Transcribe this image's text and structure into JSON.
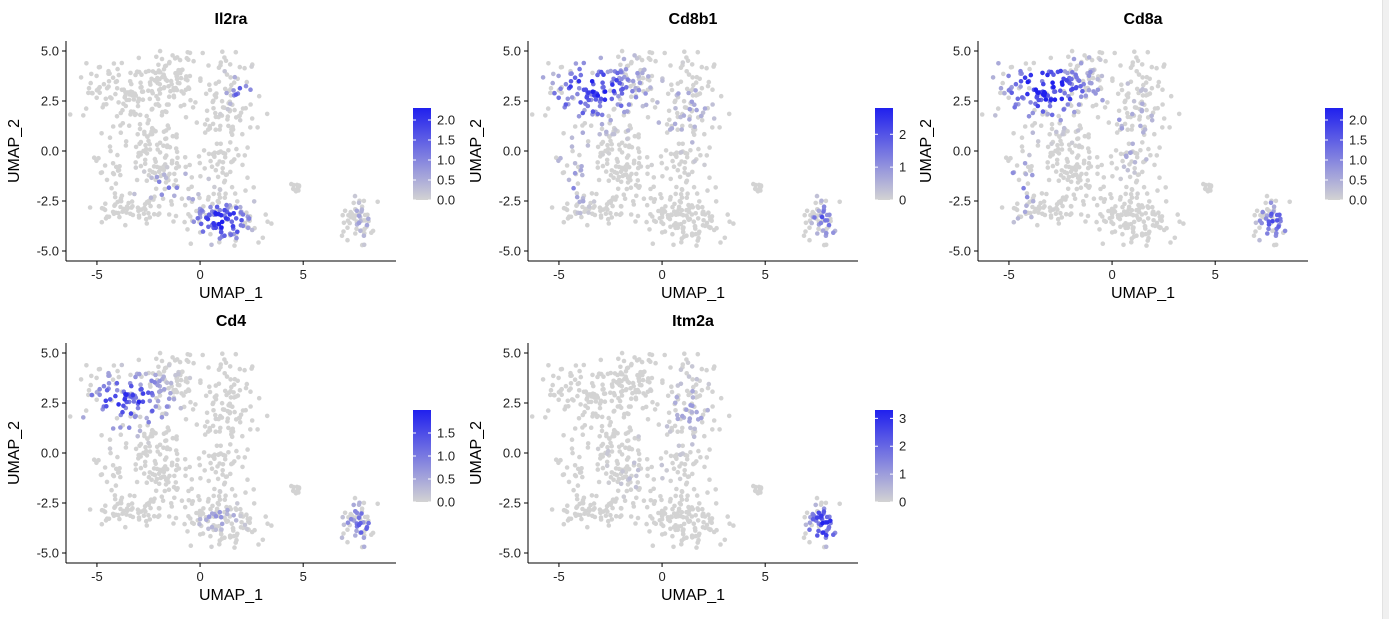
{
  "chart_data": [
    {
      "type": "scatter",
      "title": "Il2ra",
      "xlabel": "UMAP_1",
      "ylabel": "UMAP_2",
      "xlim": [
        -6.5,
        9.5
      ],
      "ylim": [
        -5.5,
        5.5
      ],
      "x_ticks": [
        -5,
        0,
        5
      ],
      "y_ticks": [
        -5.0,
        -2.5,
        0.0,
        2.5,
        5.0
      ],
      "y_tick_labels": [
        "-5.0",
        "-2.5",
        "0.0",
        "2.5",
        "5.0"
      ],
      "grid": false,
      "colorbar": {
        "range": [
          0,
          2.3
        ],
        "ticks": [
          0.0,
          0.5,
          1.0,
          1.5,
          2.0
        ],
        "tick_labels": [
          "0.0",
          "0.5",
          "1.0",
          "1.5",
          "2.0"
        ],
        "low": "#d3d3d3",
        "high": "#2020ee"
      },
      "high_regions": [
        {
          "cx": 1.1,
          "cy": -3.5,
          "sx": 1.0,
          "sy": 0.7,
          "w": 2.1
        },
        {
          "cx": 1.9,
          "cy": 3.0,
          "sx": 0.5,
          "sy": 0.6,
          "w": 1.3
        },
        {
          "cx": -1.5,
          "cy": -1.8,
          "sx": 1.0,
          "sy": 0.5,
          "w": 1.0
        },
        {
          "cx": 7.8,
          "cy": -3.5,
          "sx": 0.6,
          "sy": 0.8,
          "w": 0.6
        }
      ],
      "seed": 11
    },
    {
      "type": "scatter",
      "title": "Cd8b1",
      "xlabel": "UMAP_1",
      "ylabel": "UMAP_2",
      "xlim": [
        -6.5,
        9.5
      ],
      "ylim": [
        -5.5,
        5.5
      ],
      "x_ticks": [
        -5,
        0,
        5
      ],
      "y_ticks": [
        -5.0,
        -2.5,
        0.0,
        2.5,
        5.0
      ],
      "y_tick_labels": [
        "-5.0",
        "-2.5",
        "0.0",
        "2.5",
        "5.0"
      ],
      "grid": false,
      "colorbar": {
        "range": [
          0,
          2.8
        ],
        "ticks": [
          0,
          1,
          2
        ],
        "tick_labels": [
          "0",
          "1",
          "2"
        ],
        "low": "#d3d3d3",
        "high": "#2020ee"
      },
      "high_regions": [
        {
          "cx": -3.3,
          "cy": 3.0,
          "sx": 1.6,
          "sy": 1.1,
          "w": 2.4
        },
        {
          "cx": 7.9,
          "cy": -3.4,
          "sx": 0.6,
          "sy": 0.8,
          "w": 1.6
        },
        {
          "cx": 1.2,
          "cy": 1.8,
          "sx": 1.0,
          "sy": 1.3,
          "w": 0.8
        },
        {
          "cx": -4.3,
          "cy": -1.5,
          "sx": 0.6,
          "sy": 1.3,
          "w": 1.0
        }
      ],
      "seed": 23
    },
    {
      "type": "scatter",
      "title": "Cd8a",
      "xlabel": "UMAP_1",
      "ylabel": "UMAP_2",
      "xlim": [
        -6.5,
        9.5
      ],
      "ylim": [
        -5.5,
        5.5
      ],
      "x_ticks": [
        -5,
        0,
        5
      ],
      "y_ticks": [
        -5.0,
        -2.5,
        0.0,
        2.5,
        5.0
      ],
      "y_tick_labels": [
        "-5.0",
        "-2.5",
        "0.0",
        "2.5",
        "5.0"
      ],
      "grid": false,
      "colorbar": {
        "range": [
          0,
          2.3
        ],
        "ticks": [
          0.0,
          0.5,
          1.0,
          1.5,
          2.0
        ],
        "tick_labels": [
          "0.0",
          "0.5",
          "1.0",
          "1.5",
          "2.0"
        ],
        "low": "#d3d3d3",
        "high": "#2020ee"
      },
      "high_regions": [
        {
          "cx": -3.2,
          "cy": 3.1,
          "sx": 1.6,
          "sy": 1.1,
          "w": 2.2
        },
        {
          "cx": 7.9,
          "cy": -3.5,
          "sx": 0.6,
          "sy": 0.8,
          "w": 1.4
        },
        {
          "cx": 1.0,
          "cy": 1.0,
          "sx": 0.9,
          "sy": 1.2,
          "w": 0.8
        },
        {
          "cx": -4.4,
          "cy": -1.6,
          "sx": 0.6,
          "sy": 1.3,
          "w": 0.9
        }
      ],
      "seed": 37
    },
    {
      "type": "scatter",
      "title": "Cd4",
      "xlabel": "UMAP_1",
      "ylabel": "UMAP_2",
      "xlim": [
        -6.5,
        9.5
      ],
      "ylim": [
        -5.5,
        5.5
      ],
      "x_ticks": [
        -5,
        0,
        5
      ],
      "y_ticks": [
        -5.0,
        -2.5,
        0.0,
        2.5,
        5.0
      ],
      "y_tick_labels": [
        "-5.0",
        "-2.5",
        "0.0",
        "2.5",
        "5.0"
      ],
      "grid": false,
      "colorbar": {
        "range": [
          0,
          2.0
        ],
        "ticks": [
          0.0,
          0.5,
          1.0,
          1.5
        ],
        "tick_labels": [
          "0.0",
          "0.5",
          "1.0",
          "1.5"
        ],
        "low": "#d3d3d3",
        "high": "#2020ee"
      },
      "high_regions": [
        {
          "cx": -3.6,
          "cy": 2.6,
          "sx": 1.5,
          "sy": 1.0,
          "w": 1.6
        },
        {
          "cx": 7.8,
          "cy": -3.6,
          "sx": 0.6,
          "sy": 0.8,
          "w": 1.1
        },
        {
          "cx": 6.2,
          "cy": -2.6,
          "sx": 0.3,
          "sy": 0.2,
          "w": 1.2
        },
        {
          "cx": 0.8,
          "cy": -3.3,
          "sx": 0.8,
          "sy": 0.6,
          "w": 0.6
        }
      ],
      "seed": 41
    },
    {
      "type": "scatter",
      "title": "Itm2a",
      "xlabel": "UMAP_1",
      "ylabel": "UMAP_2",
      "xlim": [
        -6.5,
        9.5
      ],
      "ylim": [
        -5.5,
        5.5
      ],
      "x_ticks": [
        -5,
        0,
        5
      ],
      "y_ticks": [
        -5.0,
        -2.5,
        0.0,
        2.5,
        5.0
      ],
      "y_tick_labels": [
        "-5.0",
        "-2.5",
        "0.0",
        "2.5",
        "5.0"
      ],
      "grid": false,
      "colorbar": {
        "range": [
          0,
          3.3
        ],
        "ticks": [
          0,
          1,
          2,
          3
        ],
        "tick_labels": [
          "0",
          "1",
          "2",
          "3"
        ],
        "low": "#d3d3d3",
        "high": "#2020ee"
      },
      "high_regions": [
        {
          "cx": 7.8,
          "cy": -3.6,
          "sx": 0.6,
          "sy": 0.8,
          "w": 2.8
        },
        {
          "cx": 1.4,
          "cy": 2.2,
          "sx": 0.8,
          "sy": 1.2,
          "w": 0.9
        },
        {
          "cx": -1.2,
          "cy": -0.5,
          "sx": 1.0,
          "sy": 1.0,
          "w": 0.6
        }
      ],
      "seed": 53
    }
  ],
  "cell_clusters": [
    {
      "cx": -3.8,
      "cy": 2.9,
      "sx": 1.0,
      "sy": 0.8,
      "n": 95
    },
    {
      "cx": -1.6,
      "cy": 3.4,
      "sx": 1.0,
      "sy": 0.9,
      "n": 110
    },
    {
      "cx": 1.4,
      "cy": 2.6,
      "sx": 0.6,
      "sy": 1.0,
      "n": 70
    },
    {
      "cx": 1.3,
      "cy": 0.0,
      "sx": 0.6,
      "sy": 1.2,
      "n": 65
    },
    {
      "cx": -2.3,
      "cy": 0.6,
      "sx": 0.9,
      "sy": 0.8,
      "n": 60
    },
    {
      "cx": -1.4,
      "cy": -1.4,
      "sx": 0.8,
      "sy": 0.8,
      "n": 70
    },
    {
      "cx": -4.4,
      "cy": -0.7,
      "sx": 0.3,
      "sy": 1.0,
      "n": 20
    },
    {
      "cx": -3.9,
      "cy": -2.8,
      "sx": 0.6,
      "sy": 0.5,
      "n": 40
    },
    {
      "cx": -2.6,
      "cy": -3.1,
      "sx": 0.6,
      "sy": 0.3,
      "n": 22
    },
    {
      "cx": 1.0,
      "cy": -3.4,
      "sx": 1.0,
      "sy": 0.6,
      "n": 130
    },
    {
      "cx": 4.7,
      "cy": -1.8,
      "sx": 0.15,
      "sy": 0.15,
      "n": 10
    },
    {
      "cx": 7.7,
      "cy": -3.4,
      "sx": 0.45,
      "sy": 0.65,
      "n": 55
    }
  ]
}
